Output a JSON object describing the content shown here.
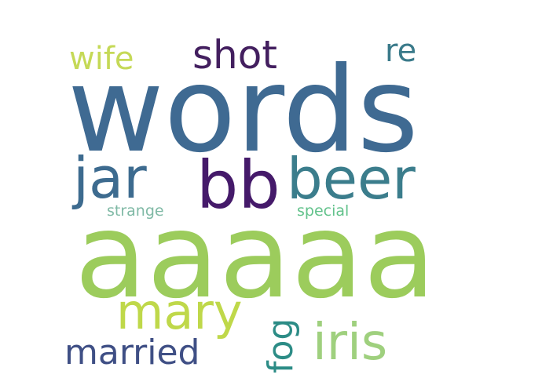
{
  "word_cloud": {
    "words": [
      {
        "text": "words",
        "color": "#3f6a92"
      },
      {
        "text": "aaaaa",
        "color": "#9ccc5c"
      },
      {
        "text": "jar",
        "color": "#3d6b8f"
      },
      {
        "text": "bb",
        "color": "#451a6a"
      },
      {
        "text": "beer",
        "color": "#3b7d8c"
      },
      {
        "text": "shot",
        "color": "#431f5f"
      },
      {
        "text": "wife",
        "color": "#c5d957"
      },
      {
        "text": "re",
        "color": "#3a7a8a"
      },
      {
        "text": "mary",
        "color": "#bfd84a"
      },
      {
        "text": "iris",
        "color": "#9fd07e"
      },
      {
        "text": "married",
        "color": "#3f4f85"
      },
      {
        "text": "fog",
        "color": "#2c8c86"
      },
      {
        "text": "strange",
        "color": "#7fb9a5"
      },
      {
        "text": "special",
        "color": "#62c28b"
      }
    ]
  }
}
